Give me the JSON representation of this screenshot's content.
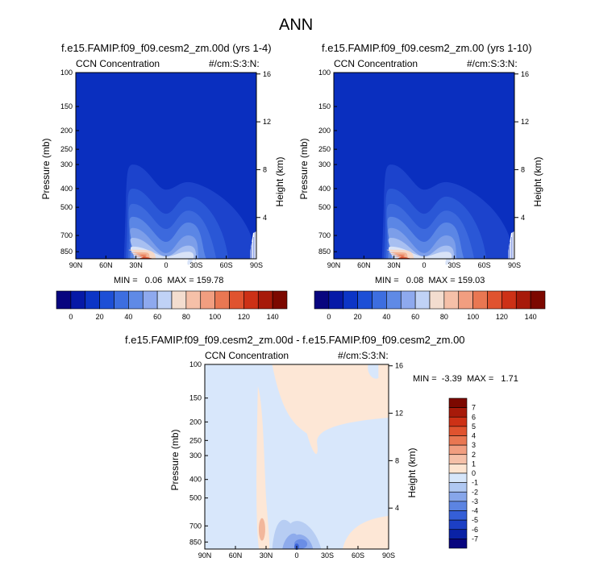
{
  "page_title": "ANN",
  "panels": [
    {
      "title": "f.e15.FAMIP.f09_f09.cesm2_zm.00d (yrs 1-4)",
      "var_label": "CCN Concentration",
      "units": "#/cm:S:3:N:",
      "stats": "MIN =   0.06  MAX = 159.78"
    },
    {
      "title": "f.e15.FAMIP.f09_f09.cesm2_zm.00 (yrs 1-10)",
      "var_label": "CCN Concentration",
      "units": "#/cm:S:3:N:",
      "stats": "MIN =   0.08  MAX = 159.03"
    },
    {
      "title": "f.e15.FAMIP.f09_f09.cesm2_zm.00d - f.e15.FAMIP.f09_f09.cesm2_zm.00",
      "var_label": "CCN Concentration",
      "units": "#/cm:S:3:N:",
      "stats": "MIN =  -3.39  MAX =   1.71"
    }
  ],
  "axes": {
    "ylabel_left": "Pressure (mb)",
    "ylabel_right": "Height (km)",
    "pressure_ticks": [
      "100",
      "150",
      "200",
      "250",
      "300",
      "400",
      "500",
      "700",
      "850"
    ],
    "pressure_values": [
      100,
      150,
      200,
      250,
      300,
      400,
      500,
      700,
      850
    ],
    "height_ticks": [
      "16",
      "12",
      "8",
      "4"
    ],
    "height_values": [
      16,
      12,
      8,
      4
    ],
    "lat_ticks": [
      "90N",
      "60N",
      "30N",
      "0",
      "30S",
      "60S",
      "90S"
    ]
  },
  "colorbar_top": {
    "labels": [
      "0",
      "20",
      "40",
      "60",
      "80",
      "100",
      "120",
      "140"
    ],
    "colors": [
      "#08057f",
      "#0619a7",
      "#0c35c6",
      "#1d4fd6",
      "#3d6ee0",
      "#5f8ae6",
      "#8ea9ee",
      "#c0d2f6",
      "#f3ddcf",
      "#f5c0a8",
      "#f19e80",
      "#e97752",
      "#e0532f",
      "#cd3116",
      "#a71a0a",
      "#7c0800"
    ]
  },
  "colorbar_diff": {
    "labels": [
      "7",
      "6",
      "5",
      "4",
      "3",
      "2",
      "1",
      "0",
      "-1",
      "-2",
      "-3",
      "-4",
      "-5",
      "-6",
      "-7"
    ],
    "colors": [
      "#7c0800",
      "#a71a0a",
      "#cd3116",
      "#e0532f",
      "#e97752",
      "#f19e80",
      "#f5c0a8",
      "#fde4d0",
      "#d6e6fa",
      "#b0c8f2",
      "#87a6ea",
      "#5c84e2",
      "#355fd7",
      "#1c3fc4",
      "#0a22a5",
      "#08057f"
    ]
  }
}
